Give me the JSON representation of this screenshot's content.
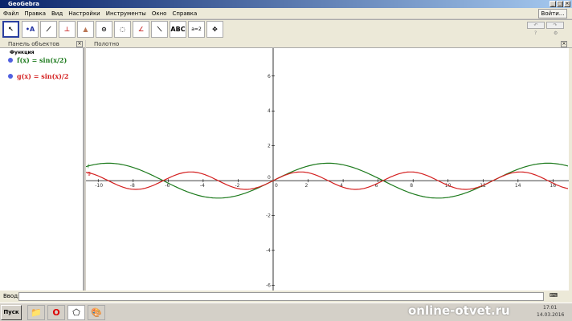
{
  "window": {
    "title": "GeoGebra",
    "min": "_",
    "max": "□",
    "close": "×"
  },
  "menu": [
    "Файл",
    "Правка",
    "Вид",
    "Настройки",
    "Инструменты",
    "Окно",
    "Справка"
  ],
  "login_label": "Войти...",
  "toolbar": {
    "tools": [
      "move",
      "point",
      "line",
      "perpendicular",
      "polygon",
      "circle",
      "circle-3pts",
      "angle",
      "reflect",
      "text",
      "slider",
      "move-view"
    ],
    "text_tool_label": "ABC",
    "slider_label": "a=2",
    "undo": "↶",
    "redo": "↷",
    "help": "?",
    "settings": "⚙"
  },
  "algebra": {
    "title": "Панель объектов",
    "group": "Функция",
    "items": [
      {
        "name": "f",
        "label": "f(x) = sin(x/2)",
        "color": "#1e7b1e"
      },
      {
        "name": "g",
        "label": "g(x) = sin(x)/2",
        "color": "#d42020"
      }
    ]
  },
  "graphics": {
    "title": "Полотно"
  },
  "chart_data": {
    "type": "line",
    "xlim": [
      -10.7,
      16.9
    ],
    "ylim": [
      -6.3,
      7.6
    ],
    "x_ticks": [
      -10,
      -8,
      -6,
      -4,
      -2,
      0,
      2,
      4,
      6,
      8,
      10,
      12,
      14,
      16
    ],
    "y_ticks": [
      -6,
      -4,
      -2,
      2,
      4,
      6
    ],
    "grid": false,
    "series": [
      {
        "name": "f",
        "expression": "sin(x/2)",
        "color": "#1e7b1e"
      },
      {
        "name": "g",
        "expression": "sin(x)/2",
        "color": "#d42020"
      }
    ]
  },
  "input": {
    "label": "Ввод:",
    "value": ""
  },
  "taskbar": {
    "start": "Пуск",
    "clock_time": "17:01",
    "clock_date": "14.03.2016",
    "watermark": "online-otvet.ru"
  }
}
